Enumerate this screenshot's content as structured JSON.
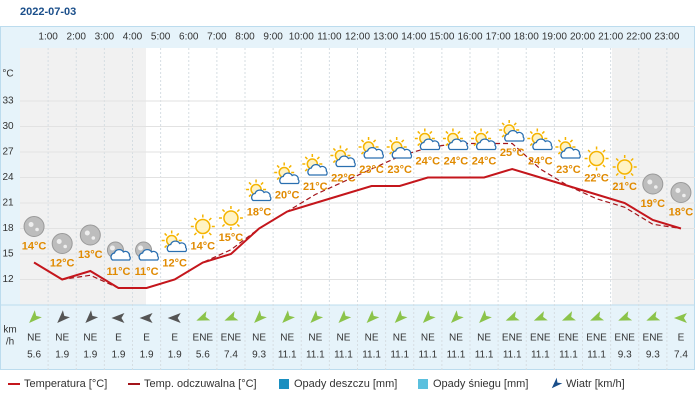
{
  "date": "2022-07-03",
  "chart_data": {
    "type": "line",
    "hour_labels": [
      "1:00",
      "2:00",
      "3:00",
      "4:00",
      "5:00",
      "6:00",
      "7:00",
      "8:00",
      "9:00",
      "10:00",
      "11:00",
      "12:00",
      "13:00",
      "14:00",
      "15:00",
      "16:00",
      "17:00",
      "18:00",
      "19:00",
      "20:00",
      "21:00",
      "22:00",
      "23:00"
    ],
    "y_unit": "°C",
    "ylim": [
      9,
      39
    ],
    "yticks": [
      12,
      15,
      18,
      21,
      24,
      27,
      30,
      33
    ],
    "grid": true,
    "series": [
      {
        "name": "Temperatura [°C]",
        "color": "#c4161c",
        "dashed": false,
        "values": [
          14,
          12,
          13,
          11,
          11,
          12,
          14,
          15,
          18,
          20,
          21,
          22,
          23,
          23,
          24,
          24,
          24,
          25,
          24,
          23,
          22,
          21,
          19,
          18
        ],
        "value_labels": [
          "14°C",
          "12°C",
          "13°C",
          "11°C",
          "11°C",
          "12°C",
          "14°C",
          "15°C",
          "18°C",
          "20°C",
          "21°C",
          "22°C",
          "23°C",
          "23°C",
          "24°C",
          "24°C",
          "24°C",
          "25°C",
          "24°C",
          "23°C",
          "22°C",
          "21°C",
          "19°C",
          "18°C"
        ]
      },
      {
        "name": "Temp. odczuwalna [°C]",
        "color": "#a3141a",
        "dashed": true,
        "values": [
          14,
          12,
          12.5,
          11,
          11,
          12,
          14,
          15.5,
          18,
          20,
          22,
          23.5,
          25,
          26.5,
          27.5,
          28,
          28,
          28,
          25,
          23,
          21.5,
          20.5,
          18.5,
          18
        ]
      }
    ],
    "legend_extra": [
      {
        "name": "Opady deszczu [mm]",
        "color": "#1a8fc0"
      },
      {
        "name": "Opady śniegu [mm]",
        "color": "#5bc0de"
      }
    ],
    "wind": {
      "name": "Wiatr [km/h]",
      "unit": [
        "km",
        "/h"
      ],
      "directions": [
        "NE",
        "NE",
        "NE",
        "E",
        "E",
        "E",
        "ENE",
        "ENE",
        "NE",
        "NE",
        "NE",
        "NE",
        "NE",
        "NE",
        "NE",
        "NE",
        "NE",
        "ENE",
        "ENE",
        "ENE",
        "ENE",
        "ENE",
        "ENE",
        "E"
      ],
      "speeds": [
        5.6,
        1.9,
        1.9,
        1.9,
        1.9,
        1.9,
        5.6,
        7.4,
        9.3,
        11.1,
        11.1,
        11.1,
        11.1,
        11.1,
        11.1,
        11.1,
        11.1,
        11.1,
        11.1,
        11.1,
        11.1,
        9.3,
        9.3,
        7.4
      ],
      "colors": [
        "#8bc34a",
        "#555",
        "#555",
        "#555",
        "#555",
        "#555",
        "#8bc34a",
        "#8bc34a",
        "#8bc34a",
        "#8bc34a",
        "#8bc34a",
        "#8bc34a",
        "#8bc34a",
        "#8bc34a",
        "#8bc34a",
        "#8bc34a",
        "#8bc34a",
        "#8bc34a",
        "#8bc34a",
        "#8bc34a",
        "#8bc34a",
        "#8bc34a",
        "#8bc34a",
        "#8bc34a"
      ]
    }
  }
}
